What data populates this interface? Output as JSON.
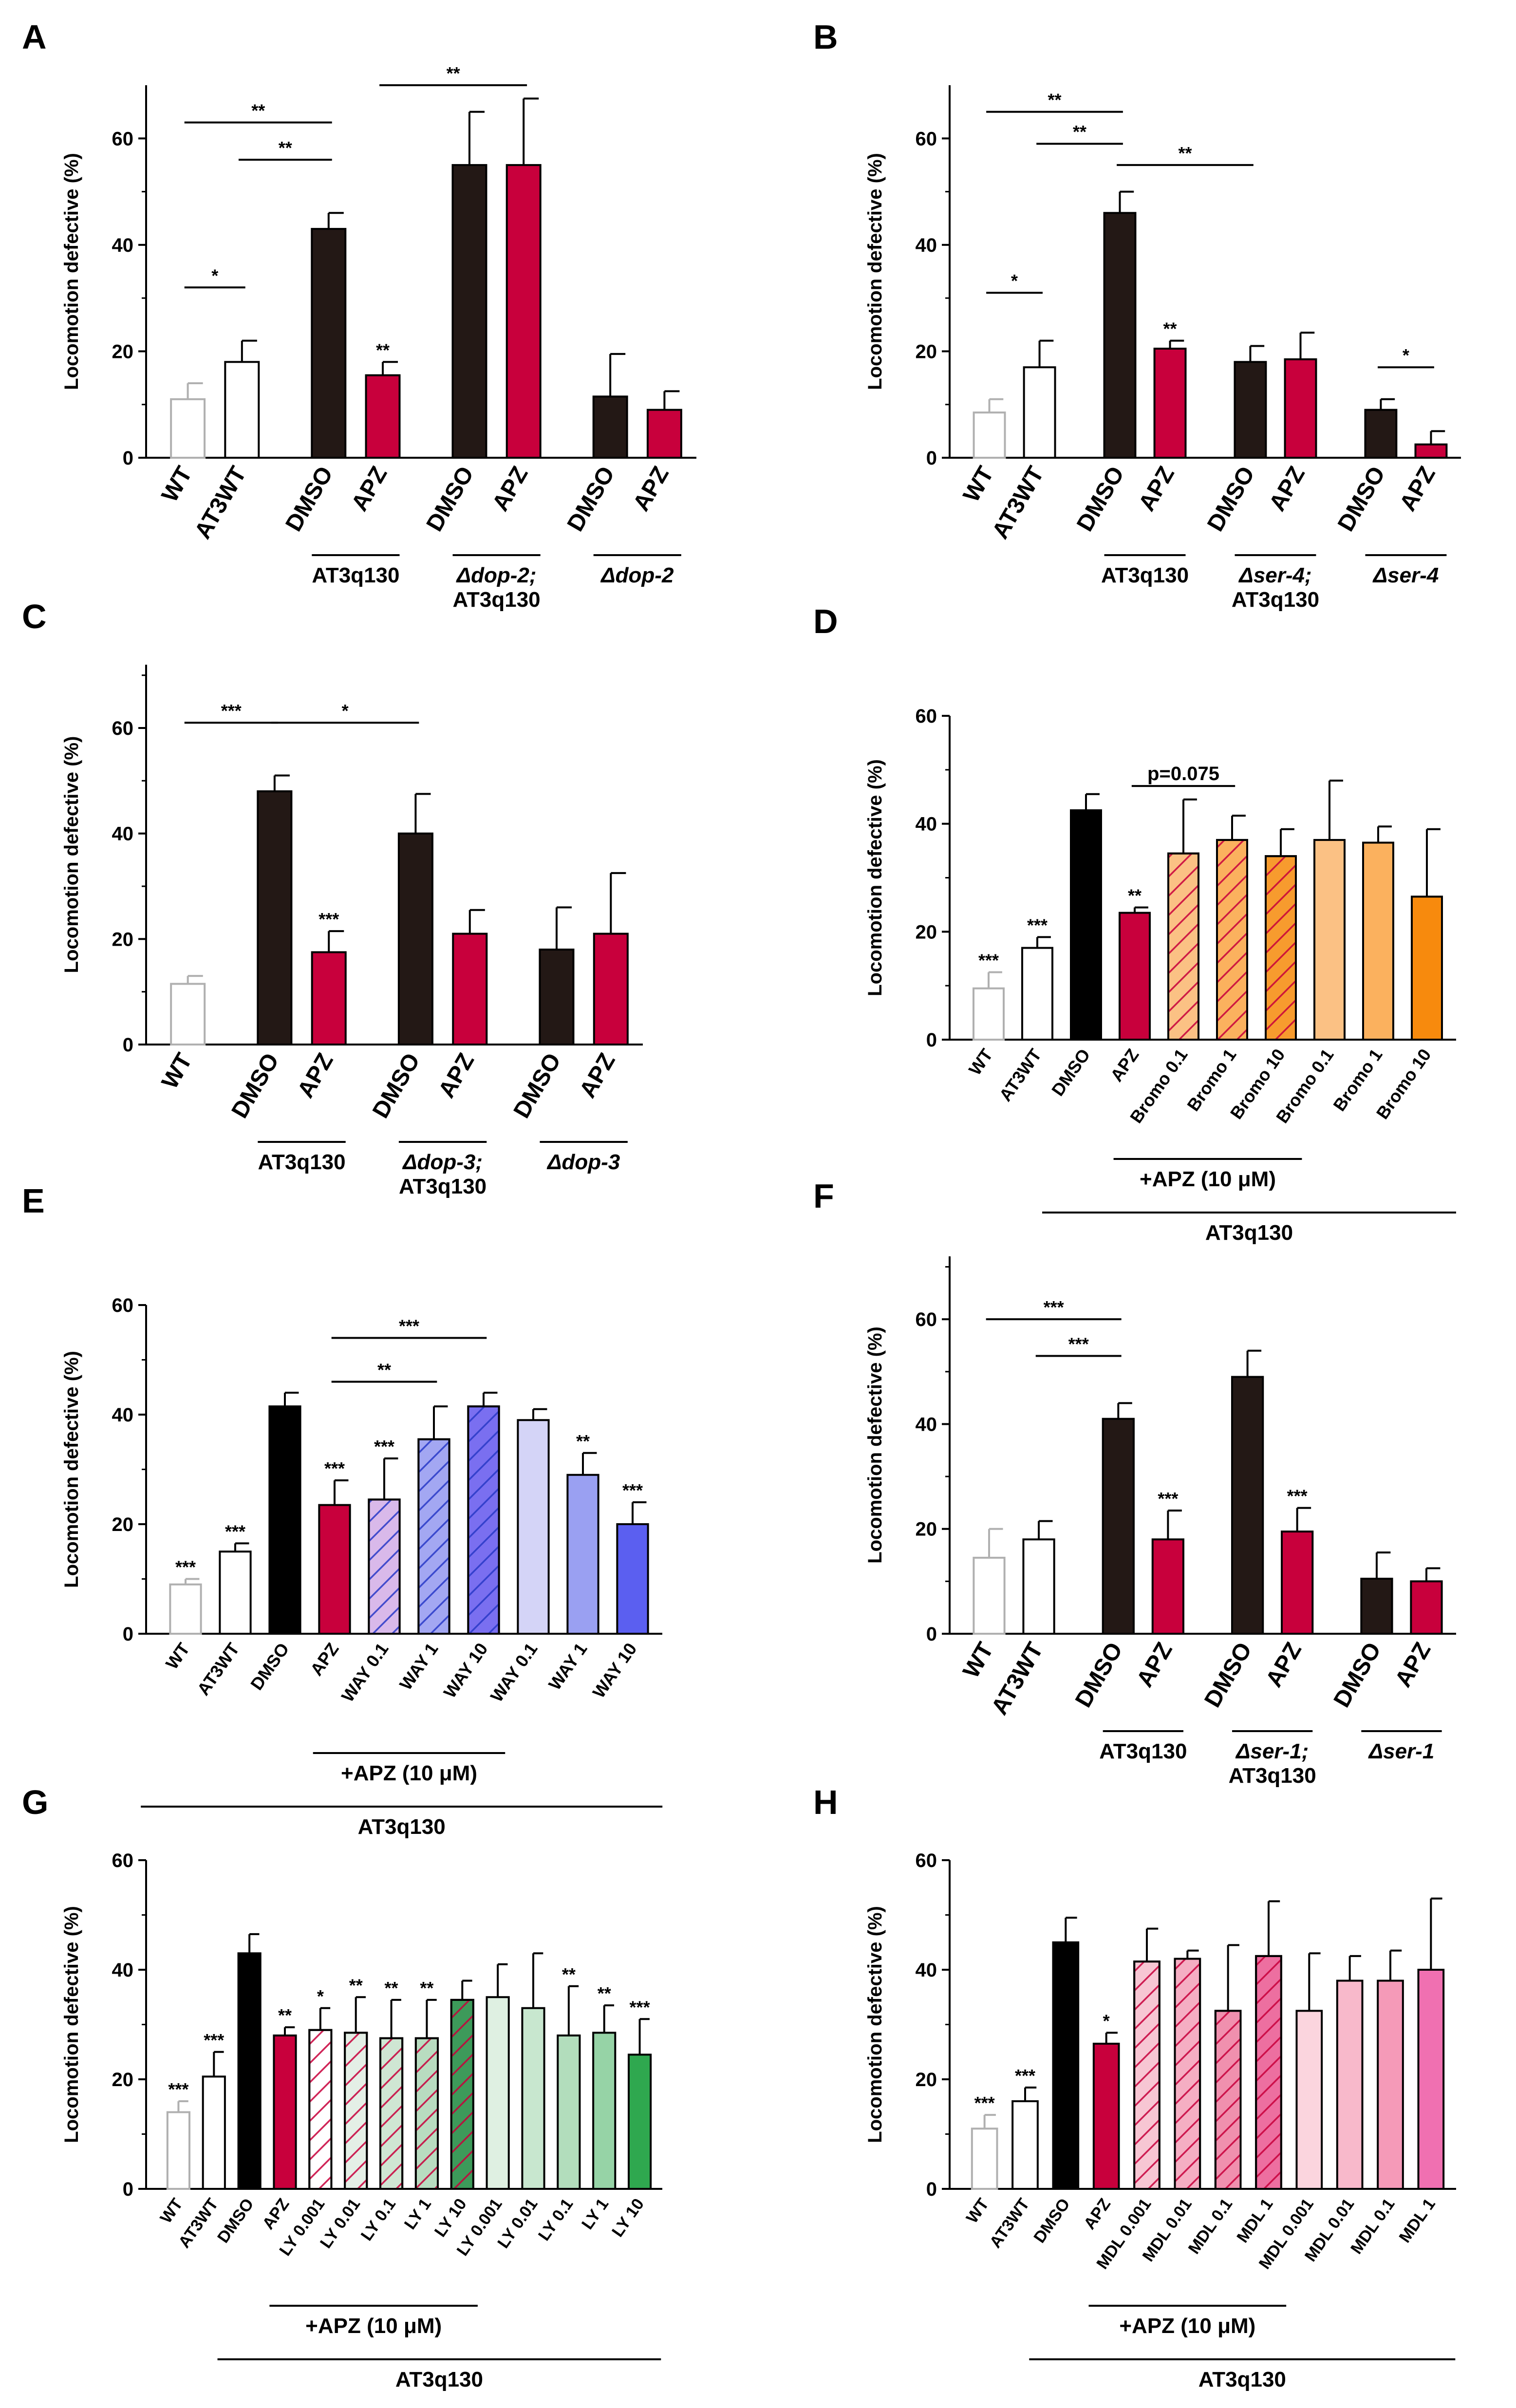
{
  "figure_title": "Locomotion defective panels A-H",
  "chart_data": [
    {
      "panel": "A",
      "type": "bar",
      "ylabel": "Locomotion defective (%)",
      "ylim": [
        0,
        70
      ],
      "yticks": [
        0,
        20,
        40,
        60
      ],
      "categories": [
        "WT",
        "AT3WT",
        "DMSO",
        "APZ",
        "DMSO",
        "APZ",
        "DMSO",
        "APZ"
      ],
      "values": [
        11,
        18,
        43,
        15.5,
        55,
        55,
        11.5,
        9
      ],
      "errors": [
        3,
        4,
        3,
        2.5,
        10,
        12.5,
        8,
        3.5
      ],
      "colors": [
        "#ffffff",
        "#ffffff",
        "#231815",
        "#c8003c",
        "#231815",
        "#c8003c",
        "#231815",
        "#c8003c"
      ],
      "edges": [
        "#b0b0b0",
        "#000000",
        "#000000",
        "#000000",
        "#000000",
        "#000000",
        "#000000",
        "#000000"
      ],
      "bar_sig": [
        "",
        "",
        "",
        "**",
        "",
        "",
        "",
        ""
      ],
      "groups": [
        {
          "label": "AT3q130",
          "from": 2,
          "to": 3
        },
        {
          "label": "Δdop-2; AT3q130",
          "from": 4,
          "to": 5
        },
        {
          "label": "Δdop-2",
          "from": 6,
          "to": 7
        }
      ],
      "brackets": [
        {
          "from": 0,
          "to": 1,
          "y": 32,
          "text": "*"
        },
        {
          "from": 0,
          "to": 2,
          "y": 63,
          "text": "**"
        },
        {
          "from": 1,
          "to": 2,
          "y": 56,
          "text": "**"
        },
        {
          "from": 3,
          "to": 5,
          "y": 70,
          "text": "**"
        }
      ]
    },
    {
      "panel": "B",
      "type": "bar",
      "ylabel": "Locomotion defective (%)",
      "ylim": [
        0,
        70
      ],
      "yticks": [
        0,
        20,
        40,
        60
      ],
      "categories": [
        "WT",
        "AT3WT",
        "DMSO",
        "APZ",
        "DMSO",
        "APZ",
        "DMSO",
        "APZ"
      ],
      "values": [
        8.5,
        17,
        46,
        20.5,
        18,
        18.5,
        9,
        2.5
      ],
      "errors": [
        2.5,
        5,
        4,
        1.5,
        3,
        5,
        2,
        2.5
      ],
      "colors": [
        "#ffffff",
        "#ffffff",
        "#231815",
        "#c8003c",
        "#231815",
        "#c8003c",
        "#231815",
        "#c8003c"
      ],
      "edges": [
        "#b0b0b0",
        "#000000",
        "#000000",
        "#000000",
        "#000000",
        "#000000",
        "#000000",
        "#000000"
      ],
      "bar_sig": [
        "",
        "",
        "",
        "**",
        "",
        "",
        "",
        ""
      ],
      "groups": [
        {
          "label": "AT3q130",
          "from": 2,
          "to": 3
        },
        {
          "label": "Δser-4; AT3q130",
          "from": 4,
          "to": 5
        },
        {
          "label": "Δser-4",
          "from": 6,
          "to": 7
        }
      ],
      "brackets": [
        {
          "from": 0,
          "to": 1,
          "y": 31,
          "text": "*"
        },
        {
          "from": 0,
          "to": 2,
          "y": 65,
          "text": "**"
        },
        {
          "from": 1,
          "to": 2,
          "y": 59,
          "text": "**"
        },
        {
          "from": 2,
          "to": 4,
          "y": 55,
          "text": "**"
        },
        {
          "from": 6,
          "to": 7,
          "y": 17,
          "text": "*"
        }
      ]
    },
    {
      "panel": "C",
      "type": "bar",
      "ylabel": "Locomotion defective (%)",
      "ylim": [
        0,
        72
      ],
      "yticks": [
        0,
        20,
        40,
        60
      ],
      "categories": [
        "WT",
        "DMSO",
        "APZ",
        "DMSO",
        "APZ",
        "DMSO",
        "APZ"
      ],
      "values": [
        11.5,
        48,
        17.5,
        40,
        21,
        18,
        21
      ],
      "errors": [
        1.5,
        3,
        4,
        7.5,
        4.5,
        8,
        11.5
      ],
      "colors": [
        "#ffffff",
        "#231815",
        "#c8003c",
        "#231815",
        "#c8003c",
        "#231815",
        "#c8003c"
      ],
      "edges": [
        "#b0b0b0",
        "#000000",
        "#000000",
        "#000000",
        "#000000",
        "#000000",
        "#000000"
      ],
      "bar_sig": [
        "",
        "",
        "***",
        "",
        "",
        "",
        ""
      ],
      "groups": [
        {
          "label": "AT3q130",
          "from": 1,
          "to": 2
        },
        {
          "label": "Δdop-3; AT3q130",
          "from": 3,
          "to": 4
        },
        {
          "label": "Δdop-3",
          "from": 5,
          "to": 6
        }
      ],
      "brackets": [
        {
          "from": 0,
          "to": 1,
          "y": 61,
          "text": "***"
        },
        {
          "from": 1,
          "to": 3,
          "y": 61,
          "text": "*"
        }
      ]
    },
    {
      "panel": "D",
      "type": "bar",
      "ylabel": "Locomotion defective (%)",
      "ylim": [
        0,
        60
      ],
      "yticks": [
        0,
        20,
        40,
        60
      ],
      "categories": [
        "WT",
        "AT3WT",
        "DMSO",
        "APZ",
        "Bromo 0.1",
        "Bromo 1",
        "Bromo 10",
        "Bromo 0.1",
        "Bromo 1",
        "Bromo 10"
      ],
      "values": [
        9.5,
        17,
        42.5,
        23.5,
        34.5,
        37,
        34,
        37,
        36.5,
        26.5
      ],
      "errors": [
        3,
        2,
        3,
        1,
        10,
        4.5,
        5,
        11,
        3,
        12.5
      ],
      "colors": [
        "#ffffff",
        "#ffffff",
        "#000000",
        "#c8003c",
        "#fbc184",
        "#fbb15e",
        "#f79b2e",
        "#fbc184",
        "#fbb15e",
        "#f78a0d"
      ],
      "edges": [
        "#b0b0b0",
        "#000000",
        "#000000",
        "#000000",
        "#000000",
        "#000000",
        "#000000",
        "#000000",
        "#000000",
        "#000000"
      ],
      "hatch": [
        false,
        false,
        false,
        false,
        true,
        true,
        true,
        false,
        false,
        false
      ],
      "bar_sig": [
        "***",
        "***",
        "",
        "**",
        "",
        "",
        "",
        "",
        "",
        ""
      ],
      "groups": [
        {
          "label": "+APZ (10 μM)",
          "from": 3,
          "to": 6
        },
        {
          "label": "AT3q130",
          "from": 2,
          "to": 9
        }
      ],
      "brackets": [
        {
          "from": 3,
          "to": 5,
          "y": 47,
          "text": "p=0.075"
        }
      ]
    },
    {
      "panel": "E",
      "type": "bar",
      "ylabel": "Locomotion defective (%)",
      "ylim": [
        0,
        60
      ],
      "yticks": [
        0,
        20,
        40,
        60
      ],
      "categories": [
        "WT",
        "AT3WT",
        "DMSO",
        "APZ",
        "WAY 0.1",
        "WAY 1",
        "WAY 10",
        "WAY 0.1",
        "WAY 1",
        "WAY 10"
      ],
      "values": [
        9,
        15,
        41.5,
        23.5,
        24.5,
        35.5,
        41.5,
        39,
        29,
        20
      ],
      "errors": [
        1,
        1.5,
        2.5,
        4.5,
        7.5,
        6,
        2.5,
        2,
        4,
        4
      ],
      "colors": [
        "#ffffff",
        "#ffffff",
        "#000000",
        "#c8003c",
        "#d9b9ea",
        "#a3a7f2",
        "#7a6ff0",
        "#d4d4f7",
        "#9aa0f2",
        "#5b5ff0"
      ],
      "edges": [
        "#b0b0b0",
        "#000000",
        "#000000",
        "#000000",
        "#000000",
        "#000000",
        "#000000",
        "#000000",
        "#000000",
        "#000000"
      ],
      "hatch": [
        false,
        false,
        false,
        false,
        true,
        true,
        true,
        false,
        false,
        false
      ],
      "bar_sig": [
        "***",
        "***",
        "",
        "***",
        "***",
        "",
        "",
        "",
        "**",
        "***"
      ],
      "groups": [
        {
          "label": "+APZ (10 μM)",
          "from": 3,
          "to": 6
        },
        {
          "label": "AT3q130",
          "from": 0,
          "to": 9
        }
      ],
      "brackets": [
        {
          "from": 3,
          "to": 6,
          "y": 54,
          "text": "***"
        },
        {
          "from": 3,
          "to": 5,
          "y": 46,
          "text": "**"
        }
      ]
    },
    {
      "panel": "F",
      "type": "bar",
      "ylabel": "Locomotion defective (%)",
      "ylim": [
        0,
        72
      ],
      "yticks": [
        0,
        20,
        40,
        60
      ],
      "categories": [
        "WT",
        "AT3WT",
        "DMSO",
        "APZ",
        "DMSO",
        "APZ",
        "DMSO",
        "APZ"
      ],
      "values": [
        14.5,
        18,
        41,
        18,
        49,
        19.5,
        10.5,
        10
      ],
      "errors": [
        5.5,
        3.5,
        3,
        5.5,
        5,
        4.5,
        5,
        2.5
      ],
      "colors": [
        "#ffffff",
        "#ffffff",
        "#231815",
        "#c8003c",
        "#231815",
        "#c8003c",
        "#231815",
        "#c8003c"
      ],
      "edges": [
        "#b0b0b0",
        "#000000",
        "#000000",
        "#000000",
        "#000000",
        "#000000",
        "#000000",
        "#000000"
      ],
      "bar_sig": [
        "",
        "",
        "",
        "***",
        "",
        "***",
        "",
        ""
      ],
      "groups": [
        {
          "label": "AT3q130",
          "from": 2,
          "to": 3
        },
        {
          "label": "Δser-1; AT3q130",
          "from": 4,
          "to": 5
        },
        {
          "label": "Δser-1",
          "from": 6,
          "to": 7
        }
      ],
      "brackets": [
        {
          "from": 0,
          "to": 2,
          "y": 60,
          "text": "***"
        },
        {
          "from": 1,
          "to": 2,
          "y": 53,
          "text": "***"
        }
      ]
    },
    {
      "panel": "G",
      "type": "bar",
      "ylabel": "Locomotion defective (%)",
      "ylim": [
        0,
        60
      ],
      "yticks": [
        0,
        20,
        40,
        60
      ],
      "categories": [
        "WT",
        "AT3WT",
        "DMSO",
        "APZ",
        "LY 0.001",
        "LY 0.01",
        "LY 0.1",
        "LY 1",
        "LY 10",
        "LY 0.001",
        "LY 0.01",
        "LY 0.1",
        "LY 1",
        "LY 10"
      ],
      "values": [
        14,
        20.5,
        43,
        28,
        29,
        28.5,
        27.5,
        27.5,
        34.5,
        35,
        33,
        28,
        28.5,
        24.5
      ],
      "errors": [
        2,
        4.5,
        3.5,
        1.5,
        4,
        6.5,
        7,
        7,
        3.5,
        6,
        10,
        9,
        5,
        6.5
      ],
      "colors": [
        "#ffffff",
        "#ffffff",
        "#000000",
        "#c8003c",
        "#ffffff",
        "#e4efe6",
        "#cfe6d3",
        "#b8dcc0",
        "#3d9a5a",
        "#dff0e2",
        "#c8e7cf",
        "#b2ddbc",
        "#96d3a6",
        "#2fa84f"
      ],
      "edges": [
        "#b0b0b0",
        "#000000",
        "#000000",
        "#000000",
        "#000000",
        "#000000",
        "#000000",
        "#000000",
        "#000000",
        "#000000",
        "#000000",
        "#000000",
        "#000000",
        "#000000"
      ],
      "hatch": [
        false,
        false,
        false,
        false,
        true,
        true,
        true,
        true,
        true,
        false,
        false,
        false,
        false,
        false
      ],
      "bar_sig": [
        "***",
        "***",
        "",
        "**",
        "*",
        "**",
        "**",
        "**",
        "",
        "",
        "",
        "**",
        "**",
        "***"
      ],
      "groups": [
        {
          "label": "+APZ (10 μM)",
          "from": 3,
          "to": 8
        },
        {
          "label": "AT3q130",
          "from": 2,
          "to": 13
        }
      ],
      "brackets": []
    },
    {
      "panel": "H",
      "type": "bar",
      "ylabel": "Locomotion defective (%)",
      "ylim": [
        0,
        60
      ],
      "yticks": [
        0,
        20,
        40,
        60
      ],
      "categories": [
        "WT",
        "AT3WT",
        "DMSO",
        "APZ",
        "MDL 0.001",
        "MDL 0.01",
        "MDL 0.1",
        "MDL 1",
        "MDL 0.001",
        "MDL 0.01",
        "MDL 0.1",
        "MDL 1"
      ],
      "values": [
        11,
        16,
        45,
        26.5,
        41.5,
        42,
        32.5,
        42.5,
        32.5,
        38,
        38,
        40
      ],
      "errors": [
        2.5,
        2.5,
        4.5,
        2,
        6,
        1.5,
        12,
        10,
        10.5,
        4.5,
        5.5,
        13
      ],
      "colors": [
        "#ffffff",
        "#ffffff",
        "#000000",
        "#c8003c",
        "#f7c6d3",
        "#f5aec3",
        "#f090ae",
        "#ed6fa0",
        "#fbd5de",
        "#f8b9cb",
        "#f59ab8",
        "#f070b1"
      ],
      "edges": [
        "#b0b0b0",
        "#000000",
        "#000000",
        "#000000",
        "#000000",
        "#000000",
        "#000000",
        "#000000",
        "#000000",
        "#000000",
        "#000000",
        "#000000"
      ],
      "hatch": [
        false,
        false,
        false,
        false,
        true,
        true,
        true,
        true,
        false,
        false,
        false,
        false
      ],
      "bar_sig": [
        "***",
        "***",
        "",
        "*",
        "",
        "",
        "",
        "",
        "",
        "",
        "",
        ""
      ],
      "groups": [
        {
          "label": "+APZ (10 μM)",
          "from": 3,
          "to": 7
        },
        {
          "label": "AT3q130",
          "from": 2,
          "to": 11
        }
      ],
      "brackets": []
    }
  ]
}
